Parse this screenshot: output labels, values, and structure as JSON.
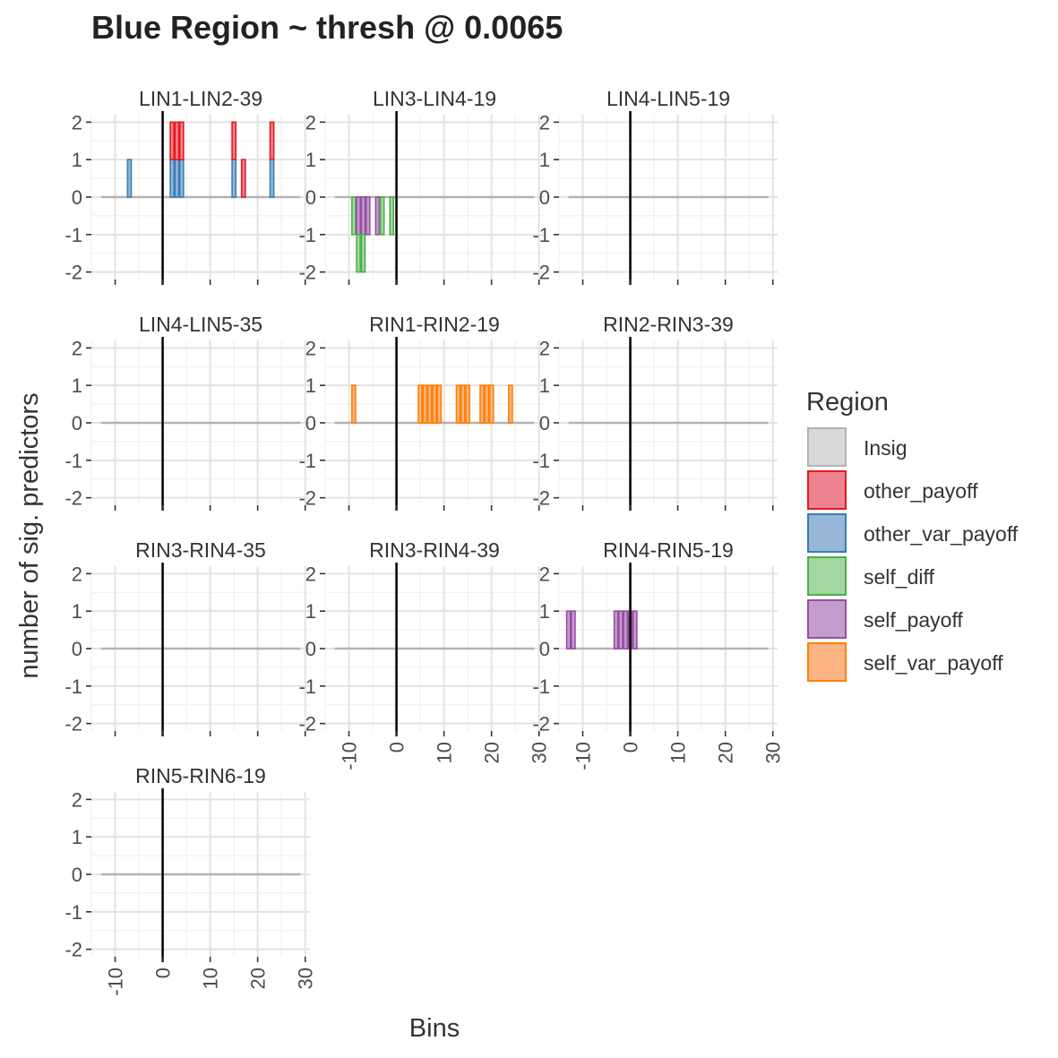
{
  "chart_data": {
    "type": "bar",
    "title": "Blue Region ~ thresh @ 0.0065",
    "xlabel": "Bins",
    "ylabel": "number of sig. predictors",
    "xlim": [
      -15,
      31
    ],
    "ylim": [
      -2.2,
      2.2
    ],
    "x_ticks": [
      -10,
      0,
      10,
      20,
      30
    ],
    "x_tick_labels": [
      "-10",
      "0",
      "10",
      "20",
      "30"
    ],
    "y_ticks": [
      -2,
      -1,
      0,
      1,
      2
    ],
    "y_tick_labels": [
      "-2",
      "-1",
      "0",
      "1",
      "2"
    ],
    "vline_x": 0,
    "baseline_y": 0,
    "baseline_range": [
      -13,
      29
    ],
    "grid": true,
    "legend": {
      "title": "Region",
      "position": "right",
      "entries": [
        {
          "name": "Insig",
          "fill": "#d9d9d9",
          "stroke": "#b3b3b3"
        },
        {
          "name": "other_payoff",
          "fill": "#ee8390",
          "stroke": "#e41a1c"
        },
        {
          "name": "other_var_payoff",
          "fill": "#98b6d6",
          "stroke": "#377eb8"
        },
        {
          "name": "self_diff",
          "fill": "#a3d6a1",
          "stroke": "#4daf4a"
        },
        {
          "name": "self_payoff",
          "fill": "#c49cce",
          "stroke": "#984ea3"
        },
        {
          "name": "self_var_payoff",
          "fill": "#fdb584",
          "stroke": "#ff7f00"
        }
      ]
    },
    "panels": [
      {
        "label": "LIN1-LIN2-39",
        "segments": [
          {
            "x": -7,
            "y0": 0,
            "y1": 1,
            "series": "other_var_payoff"
          },
          {
            "x": 2,
            "y0": 0,
            "y1": 1,
            "series": "other_var_payoff"
          },
          {
            "x": 2,
            "y0": 1,
            "y1": 2,
            "series": "other_payoff"
          },
          {
            "x": 3,
            "y0": 0,
            "y1": 1,
            "series": "other_var_payoff"
          },
          {
            "x": 3,
            "y0": 1,
            "y1": 2,
            "series": "other_payoff"
          },
          {
            "x": 4,
            "y0": 0,
            "y1": 1,
            "series": "other_var_payoff"
          },
          {
            "x": 4,
            "y0": 1,
            "y1": 2,
            "series": "other_payoff"
          },
          {
            "x": 15,
            "y0": 0,
            "y1": 1,
            "series": "other_var_payoff"
          },
          {
            "x": 15,
            "y0": 1,
            "y1": 2,
            "series": "other_payoff"
          },
          {
            "x": 17,
            "y0": 0,
            "y1": 1,
            "series": "other_payoff"
          },
          {
            "x": 23,
            "y0": 0,
            "y1": 1,
            "series": "other_var_payoff"
          },
          {
            "x": 23,
            "y0": 1,
            "y1": 2,
            "series": "other_payoff"
          }
        ]
      },
      {
        "label": "LIN3-LIN4-19",
        "segments": [
          {
            "x": -9,
            "y0": -1,
            "y1": 0,
            "series": "self_diff"
          },
          {
            "x": -8,
            "y0": -1,
            "y1": 0,
            "series": "self_payoff"
          },
          {
            "x": -8,
            "y0": -2,
            "y1": -1,
            "series": "self_diff"
          },
          {
            "x": -7,
            "y0": -1,
            "y1": 0,
            "series": "self_payoff"
          },
          {
            "x": -7,
            "y0": -2,
            "y1": -1,
            "series": "self_diff"
          },
          {
            "x": -6,
            "y0": -1,
            "y1": 0,
            "series": "self_payoff"
          },
          {
            "x": -4,
            "y0": -1,
            "y1": 0,
            "series": "self_payoff"
          },
          {
            "x": -3,
            "y0": -1,
            "y1": 0,
            "series": "self_diff"
          },
          {
            "x": -1,
            "y0": -1,
            "y1": 0,
            "series": "self_diff"
          }
        ]
      },
      {
        "label": "LIN4-LIN5-19",
        "segments": []
      },
      {
        "label": "LIN4-LIN5-35",
        "segments": []
      },
      {
        "label": "RIN1-RIN2-19",
        "segments": [
          {
            "x": -9,
            "y0": 0,
            "y1": 1,
            "series": "self_var_payoff"
          },
          {
            "x": 5,
            "y0": 0,
            "y1": 1,
            "series": "self_var_payoff"
          },
          {
            "x": 6,
            "y0": 0,
            "y1": 1,
            "series": "self_var_payoff"
          },
          {
            "x": 7,
            "y0": 0,
            "y1": 1,
            "series": "self_var_payoff"
          },
          {
            "x": 8,
            "y0": 0,
            "y1": 1,
            "series": "self_var_payoff"
          },
          {
            "x": 9,
            "y0": 0,
            "y1": 1,
            "series": "self_var_payoff"
          },
          {
            "x": 13,
            "y0": 0,
            "y1": 1,
            "series": "self_var_payoff"
          },
          {
            "x": 14,
            "y0": 0,
            "y1": 1,
            "series": "self_var_payoff"
          },
          {
            "x": 15,
            "y0": 0,
            "y1": 1,
            "series": "self_var_payoff"
          },
          {
            "x": 18,
            "y0": 0,
            "y1": 1,
            "series": "self_var_payoff"
          },
          {
            "x": 19,
            "y0": 0,
            "y1": 1,
            "series": "self_var_payoff"
          },
          {
            "x": 20,
            "y0": 0,
            "y1": 1,
            "series": "self_var_payoff"
          },
          {
            "x": 24,
            "y0": 0,
            "y1": 1,
            "series": "self_var_payoff"
          }
        ]
      },
      {
        "label": "RIN2-RIN3-39",
        "segments": []
      },
      {
        "label": "RIN3-RIN4-35",
        "segments": []
      },
      {
        "label": "RIN3-RIN4-39",
        "segments": []
      },
      {
        "label": "RIN4-RIN5-19",
        "segments": [
          {
            "x": -13,
            "y0": 0,
            "y1": 1,
            "series": "self_payoff"
          },
          {
            "x": -12,
            "y0": 0,
            "y1": 1,
            "series": "self_payoff"
          },
          {
            "x": -3,
            "y0": 0,
            "y1": 1,
            "series": "self_payoff"
          },
          {
            "x": -2,
            "y0": 0,
            "y1": 1,
            "series": "self_payoff"
          },
          {
            "x": -1,
            "y0": 0,
            "y1": 1,
            "series": "self_payoff"
          },
          {
            "x": 0,
            "y0": 0,
            "y1": 1,
            "series": "self_payoff"
          },
          {
            "x": 1,
            "y0": 0,
            "y1": 1,
            "series": "self_payoff"
          }
        ]
      },
      {
        "label": "RIN5-RIN6-19",
        "segments": []
      }
    ]
  }
}
